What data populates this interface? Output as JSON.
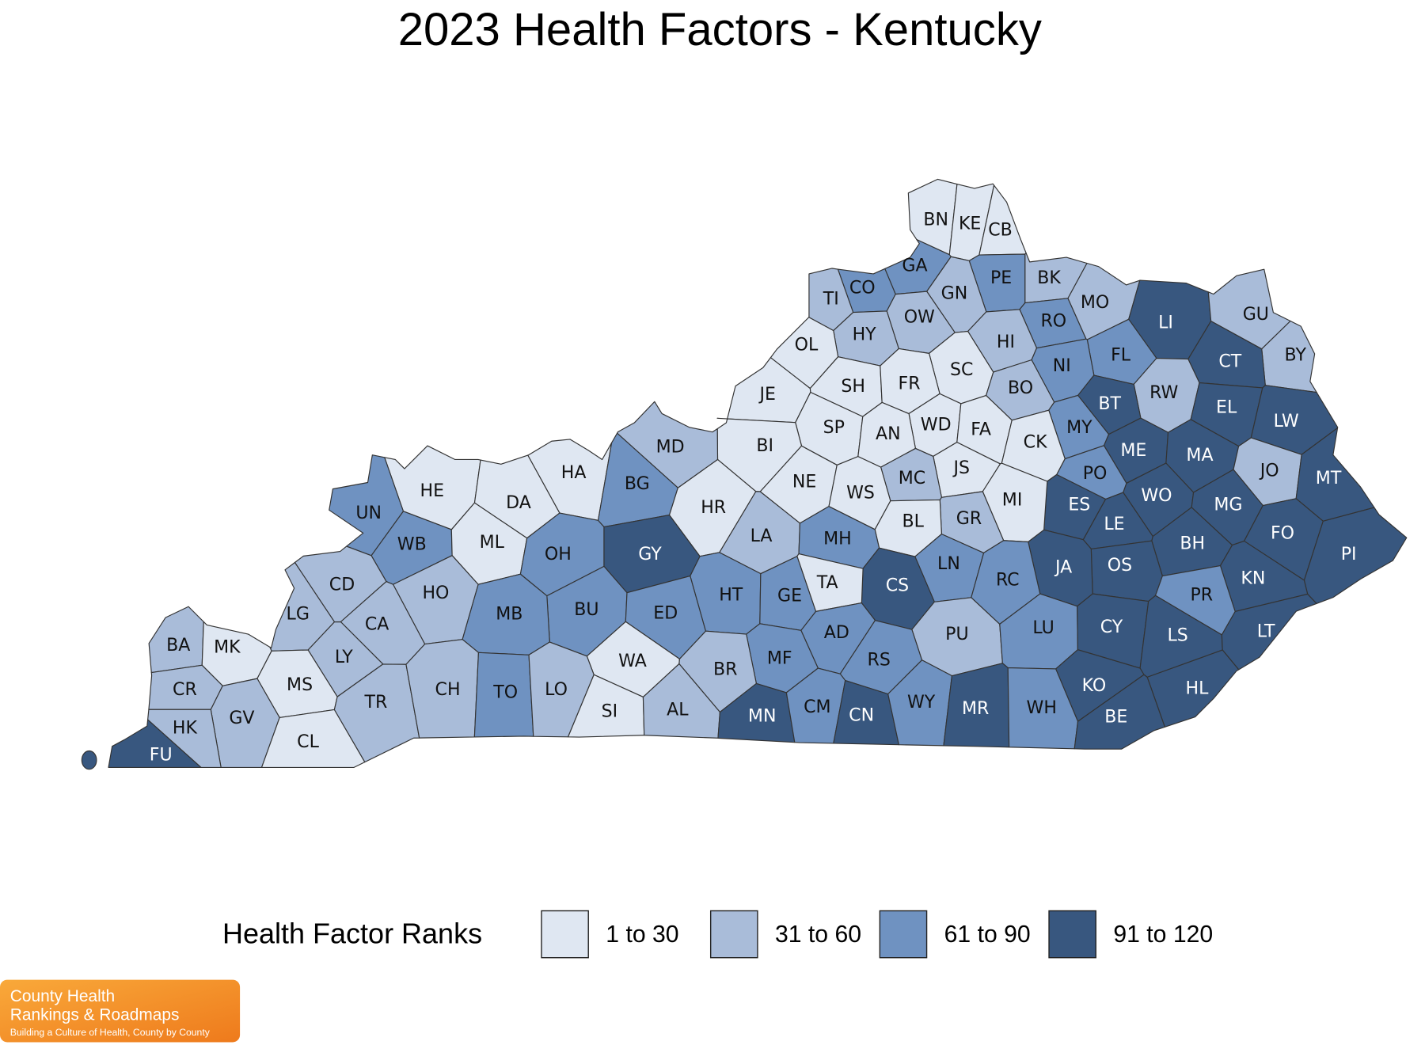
{
  "title": "2023 Health Factors - Kentucky",
  "legend": {
    "title": "Health Factor Ranks",
    "items": [
      {
        "label": "1 to 30",
        "color": "#dfe7f2"
      },
      {
        "label": "31 to 60",
        "color": "#a9bcd9"
      },
      {
        "label": "61 to 90",
        "color": "#6f92c1"
      },
      {
        "label": "91 to 120",
        "color": "#38577f"
      }
    ]
  },
  "counties": [
    {
      "label": "BN",
      "group": "1 to 30"
    },
    {
      "label": "KE",
      "group": "1 to 30"
    },
    {
      "label": "CB",
      "group": "1 to 30"
    },
    {
      "label": "GA",
      "group": "61 to 90"
    },
    {
      "label": "PE",
      "group": "61 to 90"
    },
    {
      "label": "BK",
      "group": "31 to 60"
    },
    {
      "label": "CO",
      "group": "61 to 90"
    },
    {
      "label": "TI",
      "group": "31 to 60"
    },
    {
      "label": "GN",
      "group": "31 to 60"
    },
    {
      "label": "MO",
      "group": "31 to 60"
    },
    {
      "label": "OW",
      "group": "31 to 60"
    },
    {
      "label": "RO",
      "group": "61 to 90"
    },
    {
      "label": "LI",
      "group": "91 to 120"
    },
    {
      "label": "GU",
      "group": "31 to 60"
    },
    {
      "label": "HY",
      "group": "31 to 60"
    },
    {
      "label": "HI",
      "group": "31 to 60"
    },
    {
      "label": "OL",
      "group": "1 to 30"
    },
    {
      "label": "FL",
      "group": "61 to 90"
    },
    {
      "label": "BY",
      "group": "31 to 60"
    },
    {
      "label": "NI",
      "group": "61 to 90"
    },
    {
      "label": "CT",
      "group": "91 to 120"
    },
    {
      "label": "SC",
      "group": "1 to 30"
    },
    {
      "label": "SH",
      "group": "1 to 30"
    },
    {
      "label": "FR",
      "group": "1 to 30"
    },
    {
      "label": "BO",
      "group": "31 to 60"
    },
    {
      "label": "RW",
      "group": "31 to 60"
    },
    {
      "label": "JE",
      "group": "1 to 30"
    },
    {
      "label": "EL",
      "group": "91 to 120"
    },
    {
      "label": "BT",
      "group": "91 to 120"
    },
    {
      "label": "LW",
      "group": "91 to 120"
    },
    {
      "label": "WD",
      "group": "1 to 30"
    },
    {
      "label": "FA",
      "group": "1 to 30"
    },
    {
      "label": "SP",
      "group": "1 to 30"
    },
    {
      "label": "AN",
      "group": "1 to 30"
    },
    {
      "label": "MY",
      "group": "61 to 90"
    },
    {
      "label": "BI",
      "group": "1 to 30"
    },
    {
      "label": "MD",
      "group": "31 to 60"
    },
    {
      "label": "CK",
      "group": "1 to 30"
    },
    {
      "label": "ME",
      "group": "91 to 120"
    },
    {
      "label": "MA",
      "group": "91 to 120"
    },
    {
      "label": "HA",
      "group": "1 to 30"
    },
    {
      "label": "HE",
      "group": "1 to 30"
    },
    {
      "label": "JS",
      "group": "1 to 30"
    },
    {
      "label": "PO",
      "group": "61 to 90"
    },
    {
      "label": "JO",
      "group": "31 to 60"
    },
    {
      "label": "MT",
      "group": "91 to 120"
    },
    {
      "label": "MC",
      "group": "31 to 60"
    },
    {
      "label": "DA",
      "group": "1 to 30"
    },
    {
      "label": "BG",
      "group": "61 to 90"
    },
    {
      "label": "NE",
      "group": "1 to 30"
    },
    {
      "label": "WS",
      "group": "1 to 30"
    },
    {
      "label": "WO",
      "group": "91 to 120"
    },
    {
      "label": "ES",
      "group": "91 to 120"
    },
    {
      "label": "MG",
      "group": "91 to 120"
    },
    {
      "label": "MI",
      "group": "1 to 30"
    },
    {
      "label": "UN",
      "group": "61 to 90"
    },
    {
      "label": "HR",
      "group": "1 to 30"
    },
    {
      "label": "GR",
      "group": "31 to 60"
    },
    {
      "label": "BL",
      "group": "1 to 30"
    },
    {
      "label": "LE",
      "group": "91 to 120"
    },
    {
      "label": "FO",
      "group": "91 to 120"
    },
    {
      "label": "PI",
      "group": "91 to 120"
    },
    {
      "label": "WB",
      "group": "61 to 90"
    },
    {
      "label": "ML",
      "group": "1 to 30"
    },
    {
      "label": "OH",
      "group": "61 to 90"
    },
    {
      "label": "GY",
      "group": "91 to 120"
    },
    {
      "label": "LA",
      "group": "31 to 60"
    },
    {
      "label": "MH",
      "group": "61 to 90"
    },
    {
      "label": "BH",
      "group": "91 to 120"
    },
    {
      "label": "CD",
      "group": "31 to 60"
    },
    {
      "label": "OS",
      "group": "91 to 120"
    },
    {
      "label": "JA",
      "group": "91 to 120"
    },
    {
      "label": "LN",
      "group": "61 to 90"
    },
    {
      "label": "CS",
      "group": "91 to 120"
    },
    {
      "label": "TA",
      "group": "1 to 30"
    },
    {
      "label": "RC",
      "group": "61 to 90"
    },
    {
      "label": "KN",
      "group": "91 to 120"
    },
    {
      "label": "HO",
      "group": "31 to 60"
    },
    {
      "label": "HT",
      "group": "61 to 90"
    },
    {
      "label": "GE",
      "group": "61 to 90"
    },
    {
      "label": "PR",
      "group": "61 to 90"
    },
    {
      "label": "LG",
      "group": "31 to 60"
    },
    {
      "label": "BU",
      "group": "61 to 90"
    },
    {
      "label": "MB",
      "group": "61 to 90"
    },
    {
      "label": "ED",
      "group": "61 to 90"
    },
    {
      "label": "CA",
      "group": "31 to 60"
    },
    {
      "label": "LY",
      "group": "31 to 60"
    },
    {
      "label": "AD",
      "group": "61 to 90"
    },
    {
      "label": "PU",
      "group": "31 to 60"
    },
    {
      "label": "LU",
      "group": "61 to 90"
    },
    {
      "label": "CY",
      "group": "91 to 120"
    },
    {
      "label": "LS",
      "group": "91 to 120"
    },
    {
      "label": "LT",
      "group": "91 to 120"
    },
    {
      "label": "BA",
      "group": "31 to 60"
    },
    {
      "label": "MK",
      "group": "1 to 30"
    },
    {
      "label": "MF",
      "group": "61 to 90"
    },
    {
      "label": "RS",
      "group": "61 to 90"
    },
    {
      "label": "WA",
      "group": "1 to 30"
    },
    {
      "label": "BR",
      "group": "31 to 60"
    },
    {
      "label": "MS",
      "group": "1 to 30"
    },
    {
      "label": "KO",
      "group": "91 to 120"
    },
    {
      "label": "HL",
      "group": "91 to 120"
    },
    {
      "label": "CR",
      "group": "31 to 60"
    },
    {
      "label": "GV",
      "group": "31 to 60"
    },
    {
      "label": "TR",
      "group": "31 to 60"
    },
    {
      "label": "CH",
      "group": "31 to 60"
    },
    {
      "label": "TO",
      "group": "61 to 90"
    },
    {
      "label": "LO",
      "group": "31 to 60"
    },
    {
      "label": "SI",
      "group": "1 to 30"
    },
    {
      "label": "AL",
      "group": "31 to 60"
    },
    {
      "label": "MN",
      "group": "91 to 120"
    },
    {
      "label": "CM",
      "group": "61 to 90"
    },
    {
      "label": "CN",
      "group": "91 to 120"
    },
    {
      "label": "WY",
      "group": "61 to 90"
    },
    {
      "label": "MR",
      "group": "91 to 120"
    },
    {
      "label": "WH",
      "group": "61 to 90"
    },
    {
      "label": "BE",
      "group": "91 to 120"
    },
    {
      "label": "HK",
      "group": "31 to 60"
    },
    {
      "label": "CL",
      "group": "1 to 30"
    },
    {
      "label": "FU",
      "group": "91 to 120"
    }
  ],
  "logo": {
    "line1": "County Health",
    "line2": "Rankings & Roadmaps",
    "tagline": "Building a Culture of Health, County by County"
  }
}
